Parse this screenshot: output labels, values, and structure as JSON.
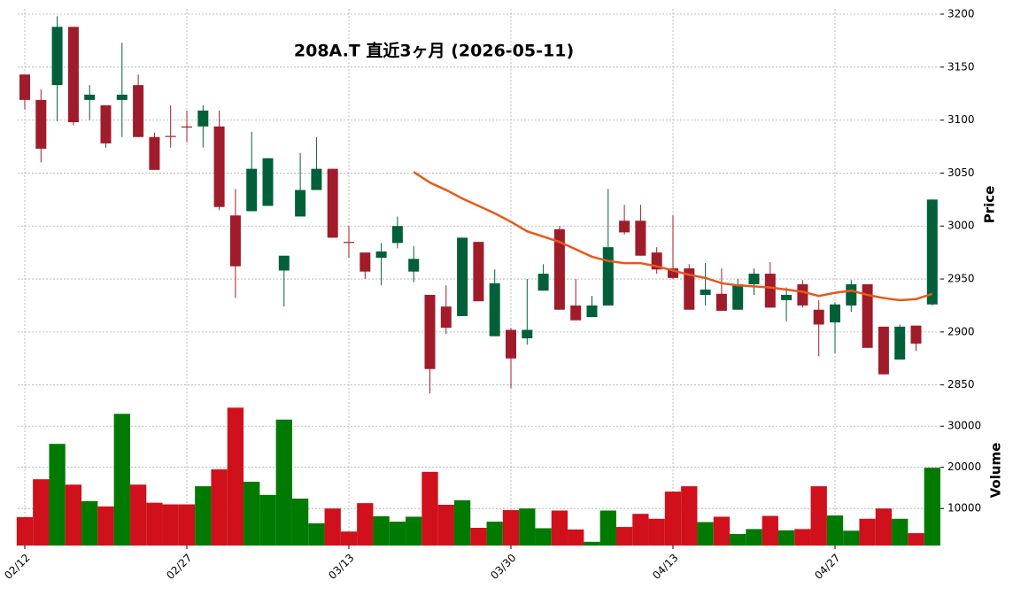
{
  "chart_data": {
    "type": "candlestick",
    "title": "208A.T  直近3ヶ月  (2026-05-11)",
    "ylabel": "Price",
    "ylim": [
      2833,
      3205
    ],
    "yticks": [
      2850,
      2900,
      2950,
      3000,
      3050,
      3100,
      3150,
      3200
    ],
    "xticks": [
      {
        "value": 0,
        "label": "02/12"
      },
      {
        "value": 10,
        "label": "02/27"
      },
      {
        "value": 20,
        "label": "03/13"
      },
      {
        "value": 30,
        "label": "03/30"
      },
      {
        "value": 40,
        "label": "04/13"
      },
      {
        "value": 50,
        "label": "04/27"
      }
    ],
    "grid": true,
    "up_color": "#00603a",
    "down_color": "#a01c2b",
    "open": [
      3143,
      3119,
      3133,
      3188,
      3119,
      3114,
      3119,
      3133,
      3084,
      3085,
      3094,
      3094,
      3094,
      3010,
      3014,
      3019,
      2958,
      3009,
      3034,
      3054,
      2985,
      2975,
      2970,
      2984,
      2957,
      2935,
      2924,
      2915,
      2985,
      2896,
      2902,
      2894,
      2939,
      2997,
      2925,
      2914,
      2925,
      3005,
      3005,
      2975,
      2960,
      2960,
      2935,
      2936,
      2921,
      2945,
      2955,
      2930,
      2945,
      2921,
      2909,
      2925,
      2945,
      2905,
      2874,
      2906,
      2926
    ],
    "high": [
      3143,
      3129,
      3198,
      3188,
      3133,
      3114,
      3173,
      3143,
      3088,
      3114,
      3109,
      3114,
      3109,
      3035,
      3089,
      3064,
      2972,
      3069,
      3084,
      3054,
      3000,
      2975,
      2984,
      3009,
      2981,
      2935,
      2944,
      2989,
      2985,
      2959,
      2904,
      2950,
      2964,
      3000,
      2950,
      2934,
      3035,
      3020,
      3020,
      2980,
      3010,
      2964,
      2965,
      2960,
      2950,
      2960,
      2966,
      2942,
      2949,
      2930,
      2928,
      2949,
      2945,
      2905,
      2907,
      2906,
      3025
    ],
    "low": [
      3110,
      3060,
      3099,
      3095,
      3100,
      3074,
      3084,
      3084,
      3053,
      3074,
      3079,
      3074,
      3015,
      2932,
      3014,
      3019,
      2924,
      3009,
      3034,
      2989,
      2970,
      2950,
      2944,
      2979,
      2947,
      2842,
      2898,
      2915,
      2929,
      2896,
      2847,
      2888,
      2939,
      2921,
      2911,
      2914,
      2925,
      2992,
      2972,
      2955,
      2950,
      2921,
      2925,
      2920,
      2921,
      2935,
      2923,
      2910,
      2923,
      2877,
      2880,
      2919,
      2885,
      2860,
      2874,
      2882,
      2925
    ],
    "close": [
      3119,
      3073,
      3188,
      3098,
      3124,
      3078,
      3124,
      3084,
      3053,
      3084,
      3093,
      3109,
      3018,
      2962,
      3054,
      3064,
      2972,
      3034,
      3054,
      2989,
      2984,
      2957,
      2976,
      3000,
      2969,
      2865,
      2904,
      2989,
      2929,
      2946,
      2875,
      2902,
      2955,
      2921,
      2911,
      2925,
      2980,
      2994,
      2972,
      2959,
      2951,
      2921,
      2940,
      2920,
      2945,
      2955,
      2923,
      2935,
      2925,
      2907,
      2926,
      2945,
      2885,
      2860,
      2905,
      2889,
      3025
    ],
    "moving_average": {
      "color": "#e8581c",
      "values": [
        null,
        null,
        null,
        null,
        null,
        null,
        null,
        null,
        null,
        null,
        null,
        null,
        null,
        null,
        null,
        null,
        null,
        null,
        null,
        null,
        null,
        null,
        null,
        null,
        3051,
        3041,
        3034,
        3026,
        3019,
        3012,
        3004,
        2995,
        2990,
        2985,
        2978,
        2971,
        2967,
        2965,
        2965,
        2962,
        2958,
        2954,
        2951,
        2946,
        2944,
        2943,
        2942,
        2940,
        2938,
        2934,
        2937,
        2939,
        2935,
        2932,
        2930,
        2931,
        2936
      ]
    },
    "volume": {
      "label": "Volume",
      "ylim": [
        1000,
        35000
      ],
      "yticks": [
        10000,
        20000,
        30000
      ],
      "up_color": "#007a00",
      "down_color": "#d0101a",
      "values": [
        7900,
        17100,
        25700,
        15800,
        11800,
        10500,
        33000,
        15800,
        11400,
        11000,
        11000,
        15400,
        19500,
        34500,
        16500,
        13300,
        31600,
        12400,
        6400,
        10000,
        4400,
        11300,
        8100,
        6800,
        8000,
        18900,
        10900,
        12000,
        5300,
        6800,
        9600,
        10000,
        5200,
        9500,
        4900,
        1900,
        9500,
        5500,
        8700,
        7500,
        14100,
        15400,
        6700,
        8000,
        3800,
        5000,
        8200,
        4700,
        5000,
        15400,
        8300,
        4600,
        7500,
        10000,
        7500,
        4000,
        19900
      ]
    }
  }
}
